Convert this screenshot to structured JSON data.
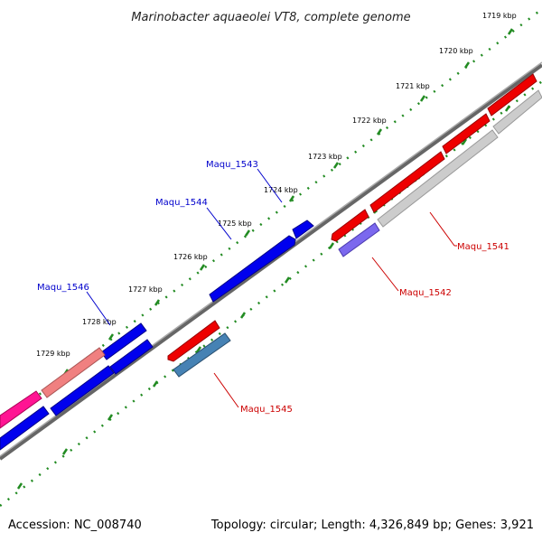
{
  "title": "Marinobacter aquaeolei VT8, complete genome",
  "footer": {
    "accession": "Accession: NC_008740",
    "stats": "Topology: circular; Length: 4,326,849 bp; Genes: 3,921"
  },
  "ticks": [
    "1719 kbp",
    "1720 kbp",
    "1721 kbp",
    "1722 kbp",
    "1723 kbp",
    "1724 kbp",
    "1725 kbp",
    "1726 kbp",
    "1727 kbp",
    "1728 kbp",
    "1729 kbp"
  ],
  "genes": [
    {
      "name": "Maqu_1541",
      "color": "#cc0000"
    },
    {
      "name": "Maqu_1542",
      "color": "#cc0000"
    },
    {
      "name": "Maqu_1543",
      "color": "#0000cc"
    },
    {
      "name": "Maqu_1544",
      "color": "#0000cc"
    },
    {
      "name": "Maqu_1545",
      "color": "#cc0000"
    },
    {
      "name": "Maqu_1546",
      "color": "#0000cc"
    }
  ],
  "colors": {
    "backbone": "#888888",
    "tick_dots": "#228b22",
    "forward_gene": "#0000ff",
    "reverse_gene": "#ff0000",
    "feature_light": "#cccccc",
    "feature_purple": "#7b68ee",
    "feature_steel": "#4682b4",
    "feature_pink": "#f08080",
    "feature_magenta": "#ff1493"
  }
}
